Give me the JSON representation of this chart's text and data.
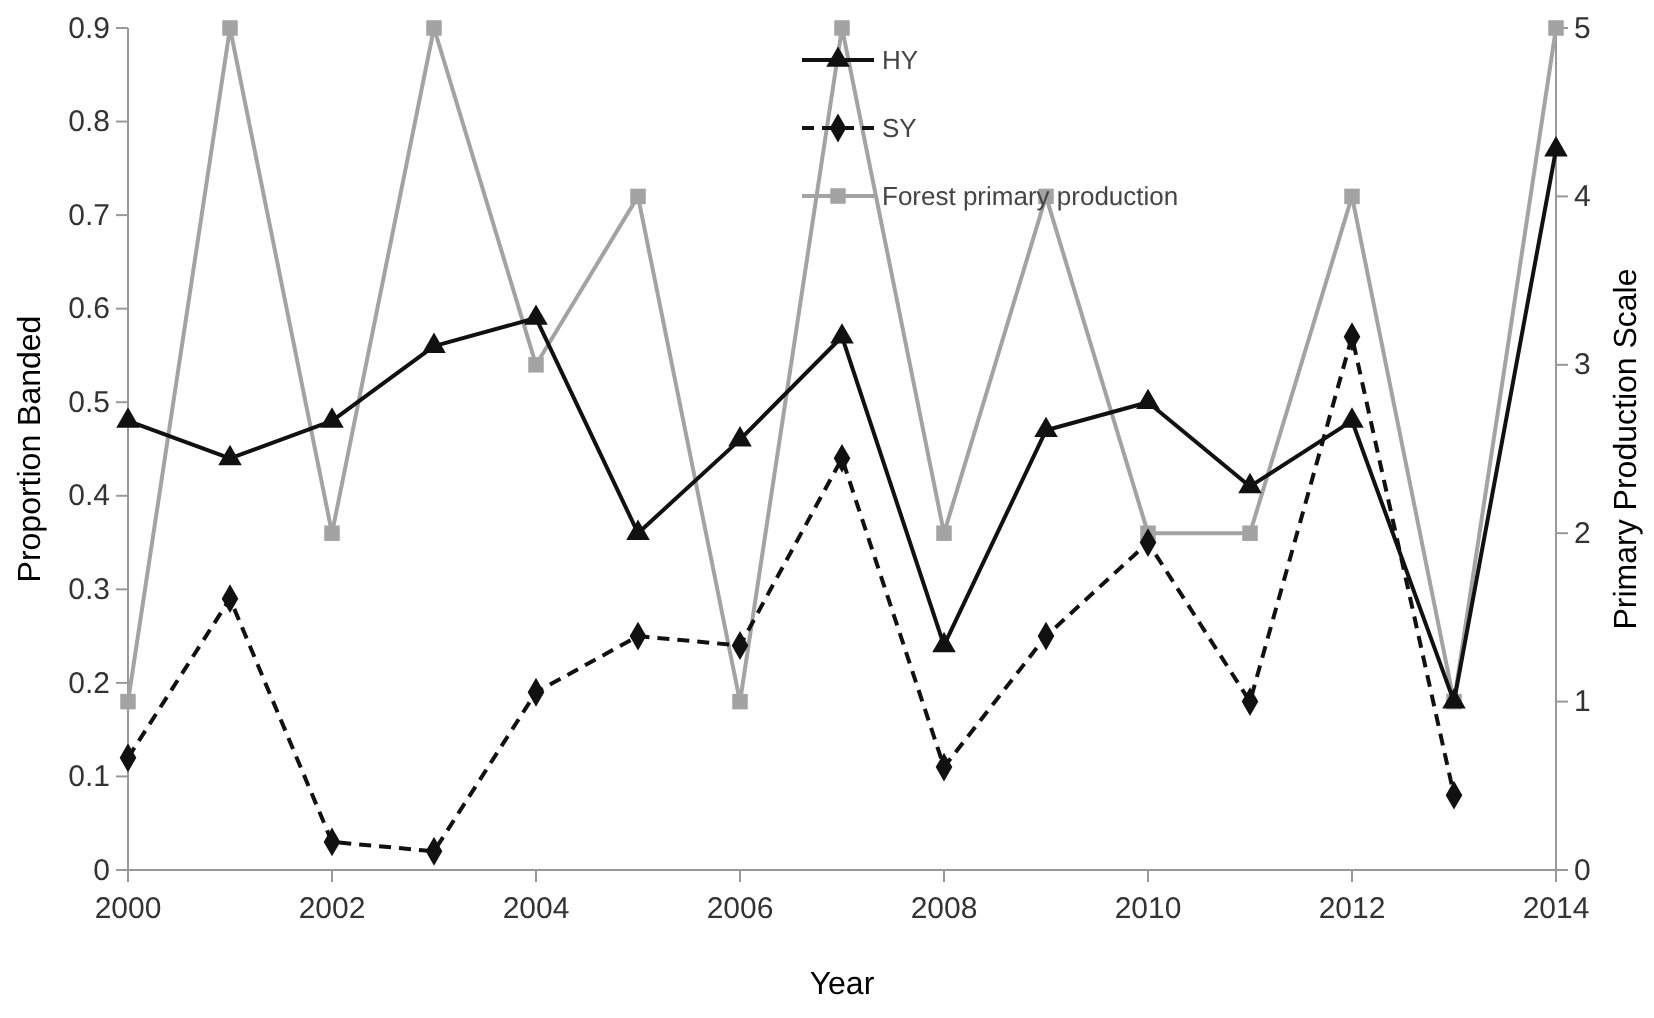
{
  "chart_data": {
    "type": "line",
    "xlabel": "Year",
    "ylabel": "Proportion Banded",
    "y2label": "Primary Production Scale",
    "x": [
      2000,
      2001,
      2002,
      2003,
      2004,
      2005,
      2006,
      2007,
      2008,
      2009,
      2010,
      2011,
      2012,
      2013,
      2014
    ],
    "series": [
      {
        "name": "HY",
        "color": "#111111",
        "marker": "triangle",
        "line_style": "solid",
        "values": [
          0.48,
          0.44,
          0.48,
          0.56,
          0.59,
          0.36,
          0.46,
          0.57,
          0.24,
          0.47,
          0.5,
          0.41,
          0.48,
          0.18,
          0.77
        ]
      },
      {
        "name": "SY",
        "color": "#111111",
        "marker": "diamond",
        "line_style": "dashed",
        "values": [
          0.12,
          0.29,
          0.03,
          0.02,
          0.19,
          0.25,
          0.24,
          0.44,
          0.11,
          0.25,
          0.35,
          0.18,
          0.57,
          0.08,
          null
        ]
      },
      {
        "name": "Forest primary production",
        "color": "#a3a3a3",
        "marker": "square",
        "line_style": "solid",
        "axis": "y2",
        "values": [
          1,
          5,
          2,
          5,
          3,
          4,
          1,
          5,
          2,
          4,
          2,
          2,
          4,
          1,
          5
        ]
      }
    ],
    "xlim": [
      2000,
      2014
    ],
    "xticks": [
      2000,
      2002,
      2004,
      2006,
      2008,
      2010,
      2012,
      2014
    ],
    "ylim": [
      0,
      0.9
    ],
    "yticks": [
      0,
      0.1,
      0.2,
      0.3,
      0.4,
      0.5,
      0.6,
      0.7,
      0.8,
      0.9
    ],
    "y2lim": [
      0,
      5
    ],
    "y2ticks": [
      0,
      1,
      2,
      3,
      4,
      5
    ],
    "grid": false,
    "legend": "top"
  }
}
